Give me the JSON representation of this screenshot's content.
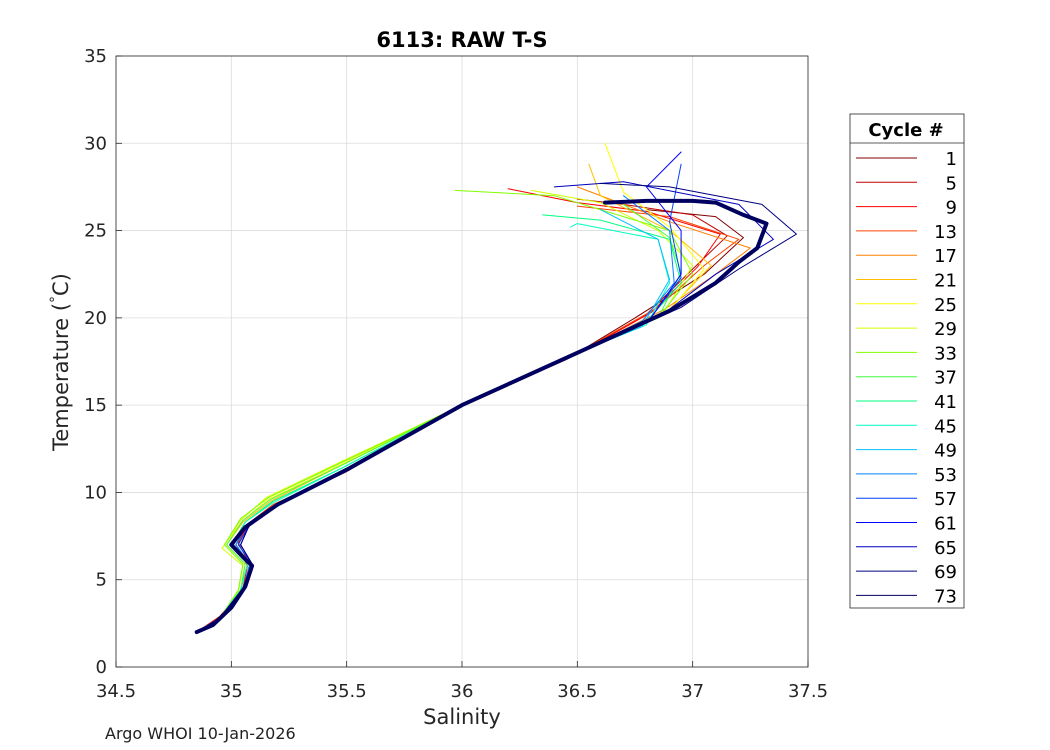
{
  "chart_data": {
    "type": "line",
    "title": "6113: RAW T-S",
    "xlabel": "Salinity",
    "ylabel": "Temperature (",
    "ylabel_unit": "C)",
    "degree_symbol": "°",
    "xlim": [
      34.5,
      37.5
    ],
    "ylim": [
      0,
      35
    ],
    "xticks": [
      34.5,
      35,
      35.5,
      36,
      36.5,
      37,
      37.5
    ],
    "xtick_labels": [
      "34.5",
      "35",
      "35.5",
      "36",
      "36.5",
      "37",
      "37.5"
    ],
    "yticks": [
      0,
      5,
      10,
      15,
      20,
      25,
      30,
      35
    ],
    "ytick_labels": [
      "0",
      "5",
      "10",
      "15",
      "20",
      "25",
      "30",
      "35"
    ],
    "grid": true,
    "legend": {
      "title": "Cycle #",
      "placement": "outside-right",
      "entries": [
        "1",
        "5",
        "9",
        "13",
        "17",
        "21",
        "25",
        "29",
        "33",
        "37",
        "41",
        "45",
        "49",
        "53",
        "57",
        "61",
        "65",
        "69",
        "73"
      ]
    },
    "series": [
      {
        "name": "1",
        "color": "#800000",
        "S": [
          34.85,
          34.95,
          35.05,
          35.08,
          35.02,
          35.07,
          35.2,
          35.5,
          36.0,
          36.5,
          36.75,
          37.05,
          37.22,
          37.1,
          36.95,
          36.8
        ],
        "T": [
          2.0,
          2.8,
          4.5,
          5.8,
          7.0,
          8.2,
          9.3,
          11.2,
          15.0,
          18.0,
          20.0,
          22.5,
          24.6,
          25.8,
          26.0,
          26.2
        ]
      },
      {
        "name": "5",
        "color": "#c00000",
        "S": [
          34.85,
          34.95,
          35.05,
          35.08,
          35.03,
          35.09,
          35.22,
          35.5,
          36.0,
          36.45,
          36.8,
          37.0,
          37.15,
          37.0,
          36.7,
          36.5
        ],
        "T": [
          2.0,
          2.8,
          4.4,
          5.9,
          7.1,
          8.3,
          9.4,
          11.3,
          15.0,
          17.6,
          20.2,
          22.8,
          24.7,
          25.9,
          26.5,
          26.8
        ]
      },
      {
        "name": "9",
        "color": "#ff0000",
        "S": [
          34.85,
          34.95,
          35.05,
          35.07,
          35.02,
          35.08,
          35.2,
          35.52,
          36.02,
          36.48,
          36.82,
          37.02,
          37.12,
          36.8,
          36.5,
          36.2
        ],
        "T": [
          2.0,
          2.9,
          4.5,
          5.8,
          7.0,
          8.2,
          9.3,
          11.4,
          15.1,
          17.8,
          20.3,
          22.9,
          24.8,
          26.1,
          26.6,
          27.4
        ]
      },
      {
        "name": "13",
        "color": "#ff4000",
        "S": [
          34.85,
          34.95,
          35.05,
          35.08,
          35.02,
          35.07,
          35.18,
          35.5,
          36.0,
          36.5,
          36.85,
          37.05,
          37.2,
          36.9,
          36.5
        ],
        "T": [
          2.0,
          2.8,
          4.4,
          5.9,
          7.0,
          8.2,
          9.3,
          11.2,
          15.0,
          18.0,
          20.6,
          23.0,
          24.5,
          25.8,
          26.4
        ]
      },
      {
        "name": "17",
        "color": "#ff8000",
        "S": [
          34.85,
          34.95,
          35.04,
          35.07,
          35.0,
          35.06,
          35.18,
          35.48,
          36.0,
          36.5,
          36.88,
          37.1,
          37.25,
          36.9,
          36.5
        ],
        "T": [
          2.0,
          2.8,
          4.4,
          5.9,
          7.0,
          8.3,
          9.5,
          11.4,
          15.0,
          18.0,
          20.5,
          22.5,
          24.0,
          25.5,
          27.5
        ]
      },
      {
        "name": "21",
        "color": "#ffbf00",
        "S": [
          34.85,
          34.95,
          35.04,
          35.06,
          34.98,
          35.05,
          35.17,
          35.47,
          36.0,
          36.5,
          36.9,
          37.08,
          36.9,
          36.6,
          36.55
        ],
        "T": [
          2.0,
          2.8,
          4.4,
          5.9,
          7.0,
          8.3,
          9.5,
          11.5,
          15.0,
          18.0,
          20.5,
          23.0,
          25.0,
          27.0,
          28.8
        ]
      },
      {
        "name": "25",
        "color": "#ffff00",
        "S": [
          34.85,
          34.95,
          35.03,
          35.05,
          34.97,
          35.05,
          35.16,
          35.46,
          36.0,
          36.5,
          36.9,
          37.05,
          36.9,
          36.7,
          36.62
        ],
        "T": [
          2.0,
          2.8,
          4.3,
          5.9,
          7.0,
          8.4,
          9.6,
          11.5,
          15.0,
          18.0,
          20.4,
          22.8,
          25.2,
          27.2,
          30.0
        ]
      },
      {
        "name": "29",
        "color": "#d0ff00",
        "S": [
          34.85,
          34.95,
          35.03,
          35.05,
          34.96,
          35.04,
          35.15,
          35.45,
          36.0,
          36.5,
          36.88,
          37.0,
          36.85,
          36.6,
          36.3
        ],
        "T": [
          2.0,
          2.8,
          4.3,
          5.8,
          6.8,
          8.4,
          9.7,
          11.6,
          15.0,
          18.0,
          20.4,
          23.0,
          25.0,
          26.6,
          27.3
        ]
      },
      {
        "name": "33",
        "color": "#80ff00",
        "S": [
          34.85,
          34.95,
          35.03,
          35.05,
          34.97,
          35.04,
          35.16,
          35.46,
          36.0,
          36.5,
          36.85,
          37.0,
          36.9,
          36.4,
          35.97
        ],
        "T": [
          2.0,
          2.8,
          4.4,
          5.9,
          7.0,
          8.5,
          9.7,
          11.6,
          15.0,
          18.0,
          20.0,
          22.5,
          25.0,
          27.0,
          27.3
        ]
      },
      {
        "name": "37",
        "color": "#40ff40",
        "S": [
          34.85,
          34.95,
          35.04,
          35.06,
          34.98,
          35.05,
          35.17,
          35.47,
          36.0,
          36.5,
          36.85,
          36.95,
          36.9,
          36.7
        ],
        "T": [
          2.0,
          2.8,
          4.4,
          5.9,
          7.0,
          8.4,
          9.6,
          11.5,
          15.0,
          18.0,
          20.0,
          22.6,
          24.6,
          26.5
        ]
      },
      {
        "name": "41",
        "color": "#00ff80",
        "S": [
          34.85,
          34.95,
          35.04,
          35.07,
          35.0,
          35.06,
          35.18,
          35.48,
          36.0,
          36.5,
          36.8,
          36.95,
          36.9,
          36.6,
          36.35
        ],
        "T": [
          2.0,
          2.8,
          4.4,
          5.9,
          7.0,
          8.3,
          9.5,
          11.4,
          15.0,
          18.0,
          19.8,
          22.0,
          24.5,
          25.6,
          25.9
        ]
      },
      {
        "name": "45",
        "color": "#00ffc0",
        "S": [
          34.85,
          34.95,
          35.04,
          35.07,
          35.01,
          35.06,
          35.18,
          35.48,
          36.0,
          36.5,
          36.8,
          36.9,
          36.85,
          36.5,
          36.47
        ],
        "T": [
          2.0,
          2.8,
          4.4,
          5.9,
          7.0,
          8.3,
          9.4,
          11.4,
          15.0,
          18.0,
          19.6,
          22.0,
          24.5,
          25.4,
          25.2
        ]
      },
      {
        "name": "49",
        "color": "#00c0ff",
        "S": [
          34.85,
          34.95,
          35.05,
          35.08,
          35.02,
          35.07,
          35.19,
          35.49,
          36.0,
          36.5,
          36.78,
          36.9,
          36.85,
          36.6
        ],
        "T": [
          2.0,
          2.8,
          4.4,
          5.9,
          7.0,
          8.2,
          9.3,
          11.3,
          15.0,
          18.0,
          19.5,
          22.2,
          24.5,
          26.2
        ]
      },
      {
        "name": "53",
        "color": "#0080ff",
        "S": [
          34.85,
          34.95,
          35.05,
          35.08,
          35.02,
          35.07,
          35.19,
          35.49,
          36.0,
          36.5,
          36.78,
          36.92,
          36.9,
          36.7
        ],
        "T": [
          2.0,
          2.8,
          4.4,
          5.9,
          7.0,
          8.2,
          9.3,
          11.3,
          15.0,
          18.0,
          19.8,
          22.0,
          25.0,
          27.0
        ]
      },
      {
        "name": "57",
        "color": "#0040ff",
        "S": [
          34.85,
          34.95,
          35.05,
          35.09,
          35.03,
          35.08,
          35.2,
          35.5,
          36.0,
          36.5,
          36.8,
          36.95,
          36.9,
          36.95
        ],
        "T": [
          2.0,
          2.8,
          4.5,
          5.9,
          7.0,
          8.2,
          9.3,
          11.3,
          15.0,
          18.0,
          19.7,
          22.3,
          25.5,
          28.8
        ]
      },
      {
        "name": "61",
        "color": "#0000ff",
        "S": [
          34.85,
          34.95,
          35.05,
          35.09,
          35.04,
          35.08,
          35.2,
          35.5,
          36.0,
          36.5,
          36.82,
          36.95,
          36.95,
          36.8,
          36.95
        ],
        "T": [
          2.0,
          2.8,
          4.5,
          5.9,
          7.0,
          8.2,
          9.3,
          11.3,
          15.0,
          18.0,
          20.0,
          22.5,
          25.0,
          27.5,
          29.5
        ]
      },
      {
        "name": "65",
        "color": "#0000c0",
        "S": [
          34.85,
          34.95,
          35.05,
          35.09,
          35.04,
          35.08,
          35.2,
          35.5,
          36.0,
          36.5,
          36.9,
          37.1,
          37.35,
          37.2,
          36.7,
          36.4
        ],
        "T": [
          2.0,
          2.8,
          4.5,
          5.9,
          7.0,
          8.2,
          9.3,
          11.3,
          15.0,
          18.0,
          20.5,
          22.5,
          24.5,
          26.5,
          27.8,
          27.5
        ]
      },
      {
        "name": "69",
        "color": "#000080",
        "S": [
          34.85,
          34.95,
          35.05,
          35.09,
          35.04,
          35.08,
          35.2,
          35.5,
          36.0,
          36.5,
          36.95,
          37.2,
          37.45,
          37.3,
          36.9,
          36.6
        ],
        "T": [
          2.0,
          2.8,
          4.5,
          5.9,
          7.0,
          8.2,
          9.3,
          11.3,
          15.0,
          18.0,
          20.6,
          22.8,
          24.8,
          26.5,
          27.5,
          27.7
        ]
      },
      {
        "name": "73",
        "color": "#000060",
        "S": [
          34.85,
          34.92,
          35.0,
          35.06,
          35.09,
          35.05,
          35.0,
          35.06,
          35.2,
          35.5,
          36.0,
          36.5,
          36.9,
          37.1,
          37.15,
          37.2,
          37.28,
          37.32,
          37.22,
          37.1,
          37.0,
          36.8,
          36.62
        ],
        "T": [
          2.0,
          2.4,
          3.4,
          4.6,
          5.8,
          6.3,
          7.0,
          8.0,
          9.3,
          11.3,
          15.0,
          18.0,
          20.4,
          22.0,
          22.6,
          23.2,
          24.0,
          25.4,
          25.9,
          26.6,
          26.7,
          26.7,
          26.6
        ],
        "bold": true
      }
    ]
  },
  "footer": "Argo WHOI 10-Jan-2026"
}
